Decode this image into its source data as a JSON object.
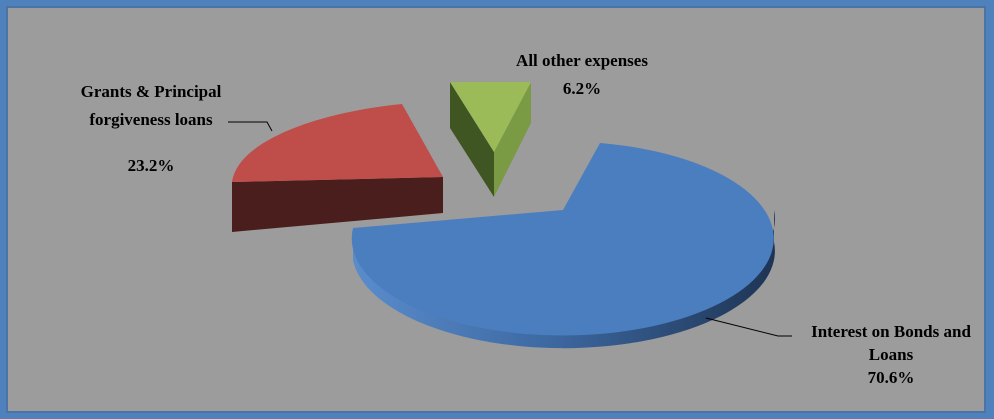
{
  "chart_data": {
    "type": "pie",
    "three_d": true,
    "exploded": true,
    "slices": [
      {
        "name": "Interest on Bonds and Loans",
        "name_lines": [
          "Interest on Bonds and",
          "Loans"
        ],
        "value": 70.6,
        "label": "70.6%",
        "color": "#4f81bd"
      },
      {
        "name": "Grants & Principal forgiveness loans",
        "name_lines": [
          "Grants & Principal",
          "forgiveness loans"
        ],
        "value": 23.2,
        "label": "23.2%",
        "color": "#c0504d"
      },
      {
        "name": "All other expenses",
        "name_lines": [
          "All other expenses"
        ],
        "value": 6.2,
        "label": "6.2%",
        "color": "#9bbb59"
      }
    ],
    "legend": "none"
  }
}
